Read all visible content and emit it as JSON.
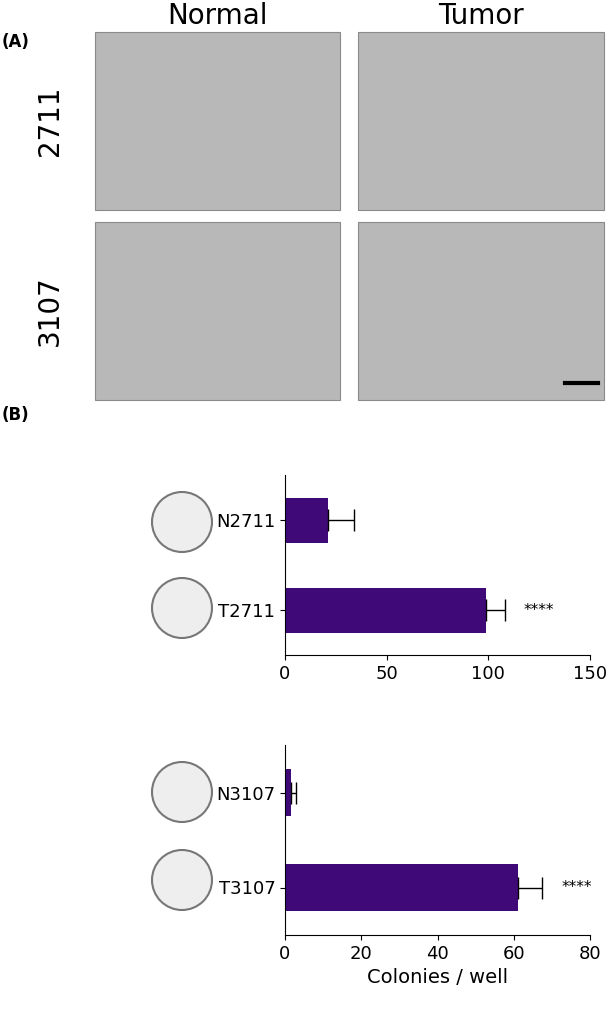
{
  "panel_a": {
    "label": "(A)",
    "columns": [
      "Normal",
      "Tumor"
    ],
    "rows": [
      "2711",
      "3107"
    ]
  },
  "panel_b": {
    "label": "(B)"
  },
  "chart_data": [
    {
      "type": "bar",
      "orientation": "horizontal",
      "categories": [
        "N2711",
        "T2711"
      ],
      "values": [
        21,
        99
      ],
      "errors": [
        13,
        9
      ],
      "significance": [
        null,
        "****"
      ],
      "color": "#3f0a78",
      "xlim": [
        0,
        150
      ],
      "xticks": [
        0,
        50,
        100,
        150
      ],
      "grid": false
    },
    {
      "type": "bar",
      "orientation": "horizontal",
      "categories": [
        "N3107",
        "T3107"
      ],
      "values": [
        1.5,
        61
      ],
      "errors": [
        1.5,
        6.5
      ],
      "significance": [
        null,
        "****"
      ],
      "color": "#3f0a78",
      "xlim": [
        0,
        80
      ],
      "xticks": [
        0,
        20,
        40,
        60,
        80
      ],
      "grid": false,
      "xlabel": "Colonies / well"
    }
  ]
}
